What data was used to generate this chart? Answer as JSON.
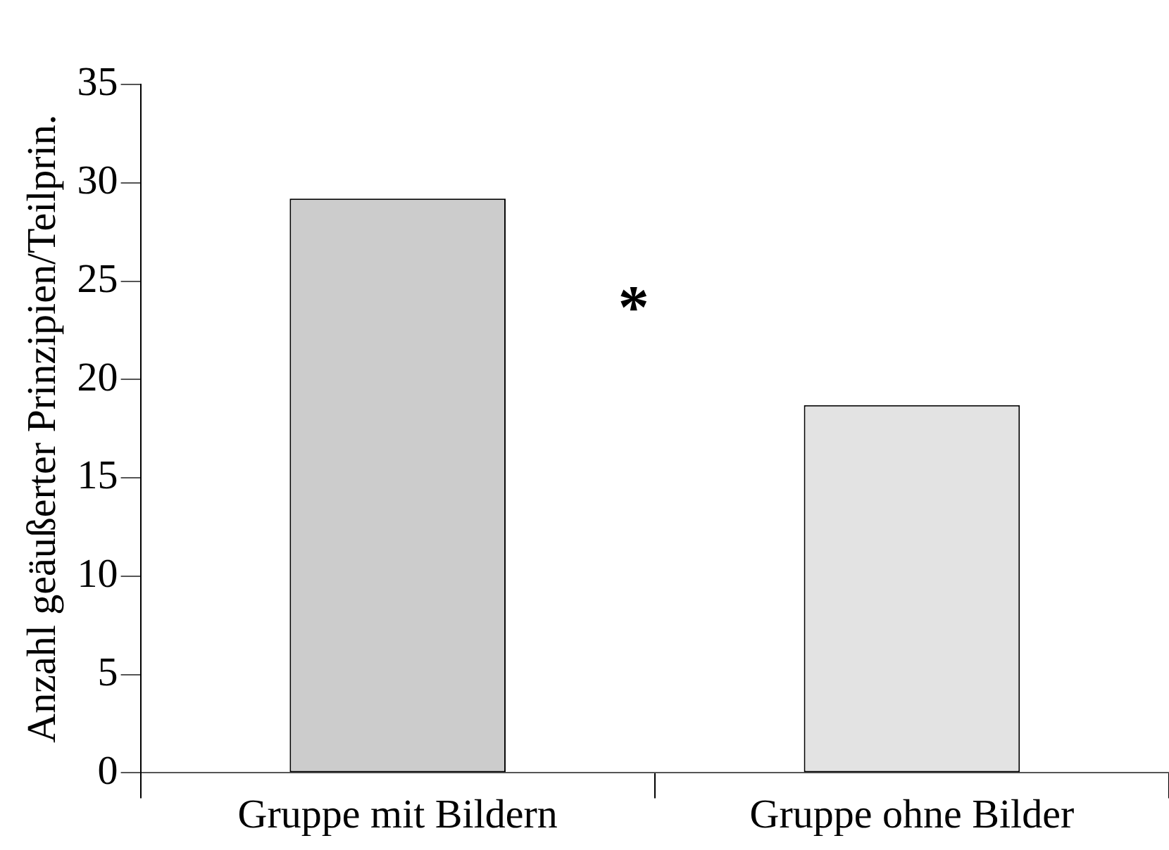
{
  "chart_data": {
    "type": "bar",
    "ylabel": "Anzahl geäußerter Prinzipien/Teilprin.",
    "categories": [
      "Gruppe mit Bildern",
      "Gruppe ohne Bilder"
    ],
    "values": [
      29.2,
      18.7
    ],
    "colors": [
      "#cccccc",
      "#e3e3e3"
    ],
    "ylim": [
      0,
      35
    ],
    "yticks": [
      0,
      5,
      10,
      15,
      20,
      25,
      30,
      35
    ],
    "grid": false,
    "legend": false,
    "annotations": [
      "*"
    ]
  }
}
